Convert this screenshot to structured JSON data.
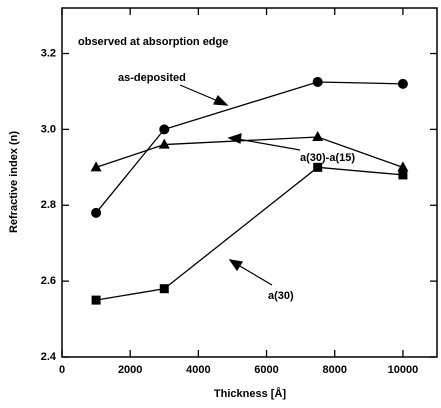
{
  "chart_data": {
    "type": "line",
    "note": "observed at absorption edge",
    "xlabel": "Thickness [Å]",
    "ylabel": "Refractive index (n)",
    "x": [
      1000,
      3000,
      7500,
      10000
    ],
    "series": [
      {
        "name": "as-deposited",
        "color": "#000000",
        "marker": "circle",
        "values": [
          2.78,
          3.0,
          3.125,
          3.12
        ]
      },
      {
        "name": "a(30)-a(15)",
        "color": "#000000",
        "marker": "triangle",
        "values": [
          2.9,
          2.96,
          2.98,
          2.9
        ]
      },
      {
        "name": "a(30)",
        "color": "#000000",
        "marker": "square",
        "values": [
          2.55,
          2.58,
          2.9,
          2.88
        ]
      }
    ],
    "xlim": [
      0,
      11000
    ],
    "xticks": [
      0,
      2000,
      4000,
      6000,
      8000,
      10000
    ],
    "ylim": [
      2.4,
      3.32
    ],
    "yticks": [
      2.4,
      2.6,
      2.8,
      {
        "value": 3,
        "label": "3.0"
      },
      3.2
    ]
  }
}
